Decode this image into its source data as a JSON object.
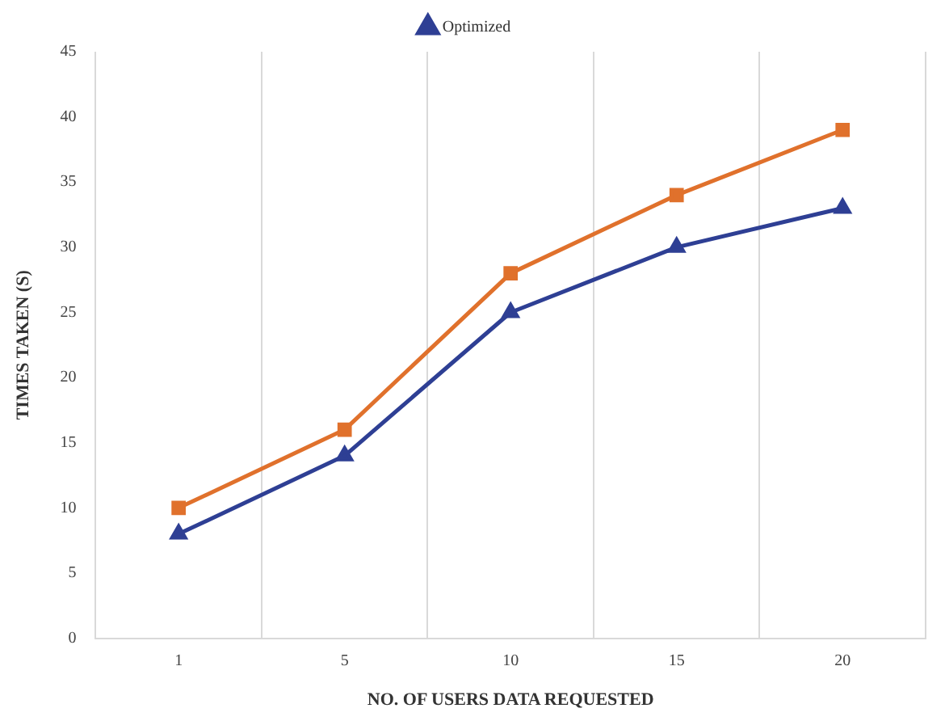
{
  "chart_data": {
    "type": "line",
    "xlabel": "NO. OF USERS DATA REQUESTED",
    "ylabel": "TIMES TAKEN (S)",
    "categories": [
      "1",
      "5",
      "10",
      "15",
      "20"
    ],
    "series": [
      {
        "color": "#e0712c",
        "marker": "square",
        "values": [
          10,
          16,
          28,
          34,
          39
        ]
      },
      {
        "name": "Optimized",
        "color": "#2e3f94",
        "marker": "triangle",
        "values": [
          8,
          14,
          25,
          30,
          33
        ]
      }
    ],
    "ylim": [
      0,
      45
    ],
    "yticks": [
      0,
      5,
      10,
      15,
      20,
      25,
      30,
      35,
      40,
      45
    ],
    "grid": "x",
    "legend": "top",
    "line_style": "solid"
  }
}
